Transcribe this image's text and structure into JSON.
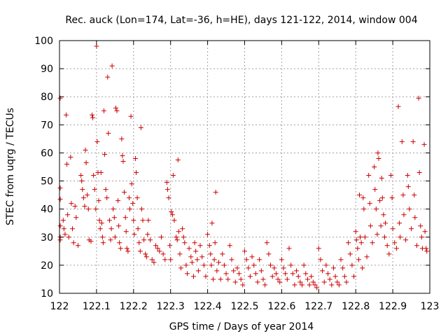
{
  "chart_data": {
    "type": "scatter",
    "title": "Rec. auck (Lon=174, Lat=-36, h=HE), days 121-122, 2014, window 004",
    "xlabel": "GPS time / Days of year 2014",
    "ylabel": "STEC from uqrg / TECUs",
    "xlim": [
      122,
      123
    ],
    "ylim": [
      10,
      100
    ],
    "xticks": [
      122,
      122.1,
      122.2,
      122.3,
      122.4,
      122.5,
      122.6,
      122.7,
      122.8,
      122.9,
      123
    ],
    "xtick_labels": [
      "122",
      "122.1",
      "122.2",
      "122.3",
      "122.4",
      "122.5",
      "122.6",
      "122.7",
      "122.8",
      "122.9",
      "123"
    ],
    "yticks": [
      10,
      20,
      30,
      40,
      50,
      60,
      70,
      80,
      90,
      100
    ],
    "ytick_labels": [
      "10",
      "20",
      "30",
      "40",
      "50",
      "60",
      "70",
      "80",
      "90",
      "100"
    ],
    "grid": true,
    "marker": "plus",
    "marker_color": "#cc0000",
    "series": [
      {
        "points": [
          [
            122.002,
            79.5
          ],
          [
            122.002,
            47.5
          ],
          [
            122.002,
            43.5
          ],
          [
            122.002,
            34
          ],
          [
            122.002,
            30
          ],
          [
            122.002,
            29
          ],
          [
            122.01,
            36
          ],
          [
            122.012,
            33
          ],
          [
            122.015,
            31
          ],
          [
            122.018,
            73.5
          ],
          [
            122.02,
            56
          ],
          [
            122.022,
            38
          ],
          [
            122.025,
            30
          ],
          [
            122.03,
            58.5
          ],
          [
            122.032,
            42
          ],
          [
            122.035,
            33
          ],
          [
            122.038,
            28
          ],
          [
            122.042,
            41
          ],
          [
            122.045,
            37
          ],
          [
            122.05,
            27
          ],
          [
            122.058,
            52
          ],
          [
            122.06,
            50
          ],
          [
            122.062,
            47
          ],
          [
            122.065,
            44
          ],
          [
            122.068,
            41
          ],
          [
            122.07,
            61
          ],
          [
            122.072,
            56.5
          ],
          [
            122.075,
            45
          ],
          [
            122.078,
            40
          ],
          [
            122.08,
            29
          ],
          [
            122.085,
            28.5
          ],
          [
            122.088,
            73.5
          ],
          [
            122.09,
            72.5
          ],
          [
            122.092,
            52
          ],
          [
            122.095,
            47
          ],
          [
            122.098,
            40
          ],
          [
            122.1,
            98
          ],
          [
            122.102,
            64
          ],
          [
            122.104,
            53
          ],
          [
            122.106,
            43
          ],
          [
            122.108,
            36
          ],
          [
            122.11,
            33
          ],
          [
            122.112,
            53
          ],
          [
            122.114,
            35
          ],
          [
            122.116,
            30
          ],
          [
            122.118,
            28
          ],
          [
            122.12,
            75
          ],
          [
            122.122,
            59.5
          ],
          [
            122.125,
            47
          ],
          [
            122.128,
            44
          ],
          [
            122.13,
            87
          ],
          [
            122.132,
            67
          ],
          [
            122.135,
            36
          ],
          [
            122.138,
            29
          ],
          [
            122.14,
            33
          ],
          [
            122.142,
            91
          ],
          [
            122.145,
            40
          ],
          [
            122.148,
            37
          ],
          [
            122.15,
            30
          ],
          [
            122.152,
            76
          ],
          [
            122.155,
            75
          ],
          [
            122.158,
            43
          ],
          [
            122.16,
            34
          ],
          [
            122.162,
            28
          ],
          [
            122.165,
            26
          ],
          [
            122.168,
            65
          ],
          [
            122.17,
            59
          ],
          [
            122.172,
            57
          ],
          [
            122.175,
            46
          ],
          [
            122.178,
            37
          ],
          [
            122.18,
            32
          ],
          [
            122.182,
            26
          ],
          [
            122.185,
            25
          ],
          [
            122.188,
            44
          ],
          [
            122.19,
            40
          ],
          [
            122.193,
            73
          ],
          [
            122.195,
            49
          ],
          [
            122.198,
            42
          ],
          [
            122.2,
            36
          ],
          [
            122.202,
            31
          ],
          [
            122.205,
            58
          ],
          [
            122.207,
            53
          ],
          [
            122.21,
            44
          ],
          [
            122.212,
            33
          ],
          [
            122.215,
            28
          ],
          [
            122.218,
            25
          ],
          [
            122.22,
            69
          ],
          [
            122.222,
            40
          ],
          [
            122.225,
            36
          ],
          [
            122.228,
            29
          ],
          [
            122.232,
            24
          ],
          [
            122.235,
            23
          ],
          [
            122.238,
            31
          ],
          [
            122.24,
            36
          ],
          [
            122.245,
            29
          ],
          [
            122.25,
            22
          ],
          [
            122.255,
            21
          ],
          [
            122.26,
            27
          ],
          [
            122.265,
            26
          ],
          [
            122.27,
            25
          ],
          [
            122.275,
            30
          ],
          [
            122.28,
            24
          ],
          [
            122.285,
            22
          ],
          [
            122.29,
            49.5
          ],
          [
            122.292,
            47
          ],
          [
            122.295,
            44
          ],
          [
            122.298,
            27
          ],
          [
            122.3,
            22
          ],
          [
            122.302,
            39
          ],
          [
            122.305,
            38
          ],
          [
            122.307,
            52
          ],
          [
            122.31,
            36
          ],
          [
            122.315,
            30
          ],
          [
            122.318,
            29
          ],
          [
            122.32,
            57.5
          ],
          [
            122.322,
            32
          ],
          [
            122.325,
            24
          ],
          [
            122.328,
            19
          ],
          [
            122.332,
            33
          ],
          [
            122.335,
            30
          ],
          [
            122.338,
            28
          ],
          [
            122.342,
            20
          ],
          [
            122.345,
            17
          ],
          [
            122.35,
            26
          ],
          [
            122.355,
            23
          ],
          [
            122.358,
            21
          ],
          [
            122.362,
            16
          ],
          [
            122.365,
            28
          ],
          [
            122.368,
            25
          ],
          [
            122.372,
            22
          ],
          [
            122.375,
            18
          ],
          [
            122.38,
            27
          ],
          [
            122.385,
            23
          ],
          [
            122.39,
            20
          ],
          [
            122.395,
            16
          ],
          [
            122.4,
            31
          ],
          [
            122.405,
            27
          ],
          [
            122.408,
            24
          ],
          [
            122.41,
            20
          ],
          [
            122.412,
            35
          ],
          [
            122.415,
            15
          ],
          [
            122.418,
            22
          ],
          [
            122.42,
            28
          ],
          [
            122.422,
            46
          ],
          [
            122.425,
            18
          ],
          [
            122.43,
            21
          ],
          [
            122.435,
            15
          ],
          [
            122.44,
            24
          ],
          [
            122.445,
            20
          ],
          [
            122.45,
            17
          ],
          [
            122.455,
            15
          ],
          [
            122.46,
            27
          ],
          [
            122.465,
            22
          ],
          [
            122.47,
            18
          ],
          [
            122.475,
            14
          ],
          [
            122.48,
            19
          ],
          [
            122.485,
            17
          ],
          [
            122.49,
            15
          ],
          [
            122.495,
            13
          ],
          [
            122.5,
            25
          ],
          [
            122.505,
            22
          ],
          [
            122.51,
            19
          ],
          [
            122.515,
            16
          ],
          [
            122.52,
            23
          ],
          [
            122.525,
            20
          ],
          [
            122.53,
            17
          ],
          [
            122.535,
            14
          ],
          [
            122.54,
            22
          ],
          [
            122.545,
            18
          ],
          [
            122.55,
            15
          ],
          [
            122.555,
            13
          ],
          [
            122.56,
            28
          ],
          [
            122.565,
            24
          ],
          [
            122.57,
            20
          ],
          [
            122.575,
            16
          ],
          [
            122.58,
            19
          ],
          [
            122.585,
            17
          ],
          [
            122.59,
            15
          ],
          [
            122.595,
            14
          ],
          [
            122.6,
            22
          ],
          [
            122.605,
            19
          ],
          [
            122.61,
            17
          ],
          [
            122.615,
            15
          ],
          [
            122.62,
            26
          ],
          [
            122.625,
            20
          ],
          [
            122.63,
            17
          ],
          [
            122.635,
            13
          ],
          [
            122.64,
            18
          ],
          [
            122.645,
            16
          ],
          [
            122.65,
            14
          ],
          [
            122.655,
            13
          ],
          [
            122.66,
            20
          ],
          [
            122.665,
            17
          ],
          [
            122.67,
            15
          ],
          [
            122.675,
            13
          ],
          [
            122.68,
            16
          ],
          [
            122.685,
            14
          ],
          [
            122.69,
            13
          ],
          [
            122.695,
            12
          ],
          [
            122.7,
            26
          ],
          [
            122.705,
            22
          ],
          [
            122.71,
            18
          ],
          [
            122.715,
            14
          ],
          [
            122.72,
            20
          ],
          [
            122.725,
            17
          ],
          [
            122.73,
            15
          ],
          [
            122.735,
            13
          ],
          [
            122.74,
            19
          ],
          [
            122.745,
            16
          ],
          [
            122.75,
            14
          ],
          [
            122.755,
            13
          ],
          [
            122.76,
            22
          ],
          [
            122.765,
            19
          ],
          [
            122.77,
            16
          ],
          [
            122.775,
            14
          ],
          [
            122.78,
            28
          ],
          [
            122.785,
            24
          ],
          [
            122.79,
            20
          ],
          [
            122.795,
            16
          ],
          [
            122.8,
            32
          ],
          [
            122.802,
            29
          ],
          [
            122.805,
            26
          ],
          [
            122.808,
            22
          ],
          [
            122.81,
            45
          ],
          [
            122.812,
            30
          ],
          [
            122.815,
            28
          ],
          [
            122.818,
            19
          ],
          [
            122.82,
            44
          ],
          [
            122.822,
            40
          ],
          [
            122.825,
            30
          ],
          [
            122.83,
            23
          ],
          [
            122.835,
            52
          ],
          [
            122.838,
            42
          ],
          [
            122.84,
            34
          ],
          [
            122.845,
            28
          ],
          [
            122.85,
            55
          ],
          [
            122.852,
            47
          ],
          [
            122.855,
            40
          ],
          [
            122.858,
            31
          ],
          [
            122.86,
            60
          ],
          [
            122.862,
            58
          ],
          [
            122.865,
            43
          ],
          [
            122.868,
            34
          ],
          [
            122.87,
            51
          ],
          [
            122.872,
            44
          ],
          [
            122.875,
            38
          ],
          [
            122.878,
            30
          ],
          [
            122.88,
            35
          ],
          [
            122.885,
            27
          ],
          [
            122.89,
            24
          ],
          [
            122.895,
            52
          ],
          [
            122.898,
            44
          ],
          [
            122.9,
            33
          ],
          [
            122.905,
            28
          ],
          [
            122.91,
            26
          ],
          [
            122.915,
            76.5
          ],
          [
            122.918,
            35
          ],
          [
            122.92,
            30
          ],
          [
            122.925,
            64
          ],
          [
            122.928,
            45
          ],
          [
            122.93,
            38
          ],
          [
            122.935,
            29
          ],
          [
            122.94,
            52
          ],
          [
            122.942,
            48
          ],
          [
            122.945,
            40
          ],
          [
            122.95,
            33
          ],
          [
            122.955,
            64
          ],
          [
            122.958,
            45
          ],
          [
            122.96,
            37
          ],
          [
            122.965,
            27
          ],
          [
            122.97,
            79.5
          ],
          [
            122.972,
            53
          ],
          [
            122.975,
            34
          ],
          [
            122.978,
            30
          ],
          [
            122.98,
            26
          ],
          [
            122.985,
            63
          ],
          [
            122.987,
            32
          ],
          [
            122.99,
            26
          ],
          [
            122.992,
            25
          ]
        ]
      }
    ]
  }
}
